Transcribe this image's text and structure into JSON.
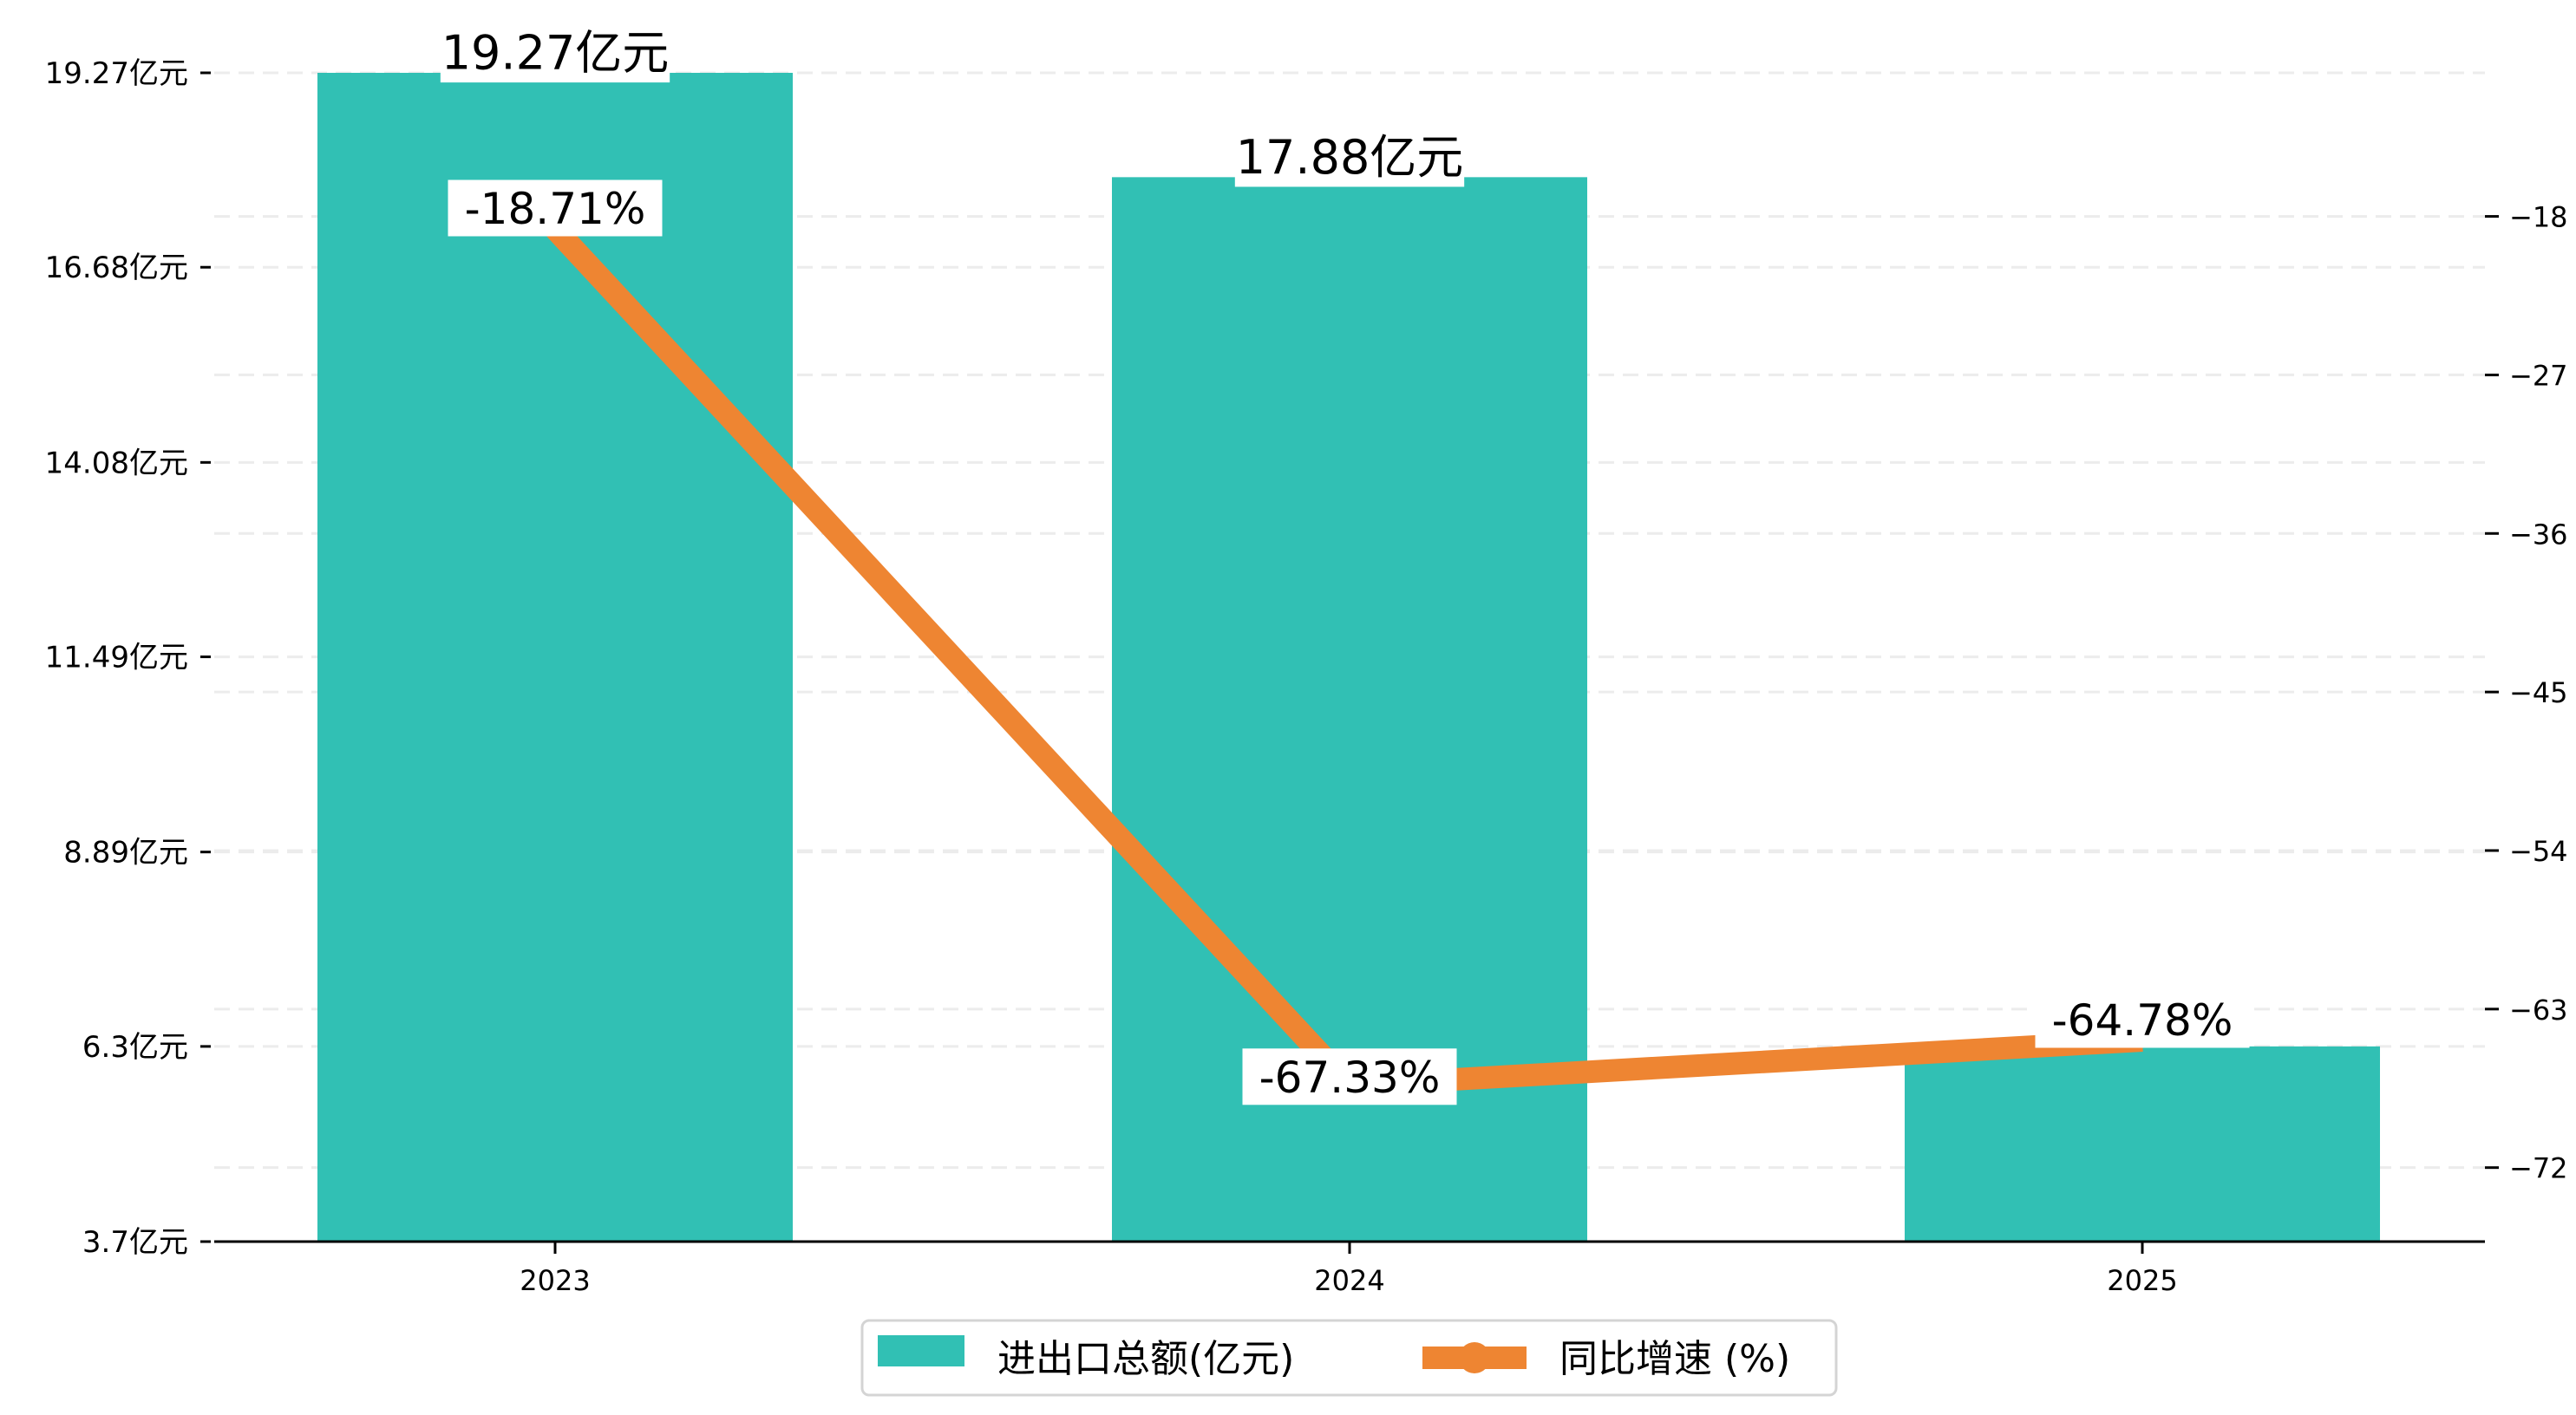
{
  "chart_data": {
    "type": "bar+line",
    "title": "",
    "xlabel": "",
    "categories": [
      "2023",
      "2024",
      "2025"
    ],
    "series": [
      {
        "name": "进出口总额(亿元)",
        "type": "bar",
        "axis": "left",
        "values": [
          19.27,
          17.88,
          6.3
        ],
        "labels": [
          "19.27亿元",
          "17.88亿元",
          ""
        ],
        "color": "#31C0B4"
      },
      {
        "name": "同比增速 (%)",
        "type": "line",
        "axis": "right",
        "values": [
          -18.71,
          -67.33,
          -64.78
        ],
        "labels": [
          "-18.71%",
          "-67.33%",
          "-64.78%"
        ],
        "color": "#EE8532"
      }
    ],
    "left_axis": {
      "ylim": [
        3.7,
        19.27
      ],
      "ticks": [
        3.7,
        6.3,
        8.89,
        11.49,
        14.08,
        16.68,
        19.27
      ],
      "tick_labels": [
        "3.7亿元",
        "6.3亿元",
        "8.89亿元",
        "11.49亿元",
        "14.08亿元",
        "16.68亿元",
        "19.27亿元"
      ]
    },
    "right_axis": {
      "ylim": [
        -76.2,
        -9.85
      ],
      "ticks": [
        -18,
        -27,
        -36,
        -45,
        -54,
        -63,
        -72
      ],
      "tick_labels": [
        "−18",
        "−27",
        "−36",
        "−45",
        "−54",
        "−63",
        "−72"
      ]
    },
    "grid": true,
    "legend": {
      "placement": "bottom-center",
      "entries": [
        "进出口总额(亿元)",
        "同比增速 (%)"
      ]
    }
  }
}
